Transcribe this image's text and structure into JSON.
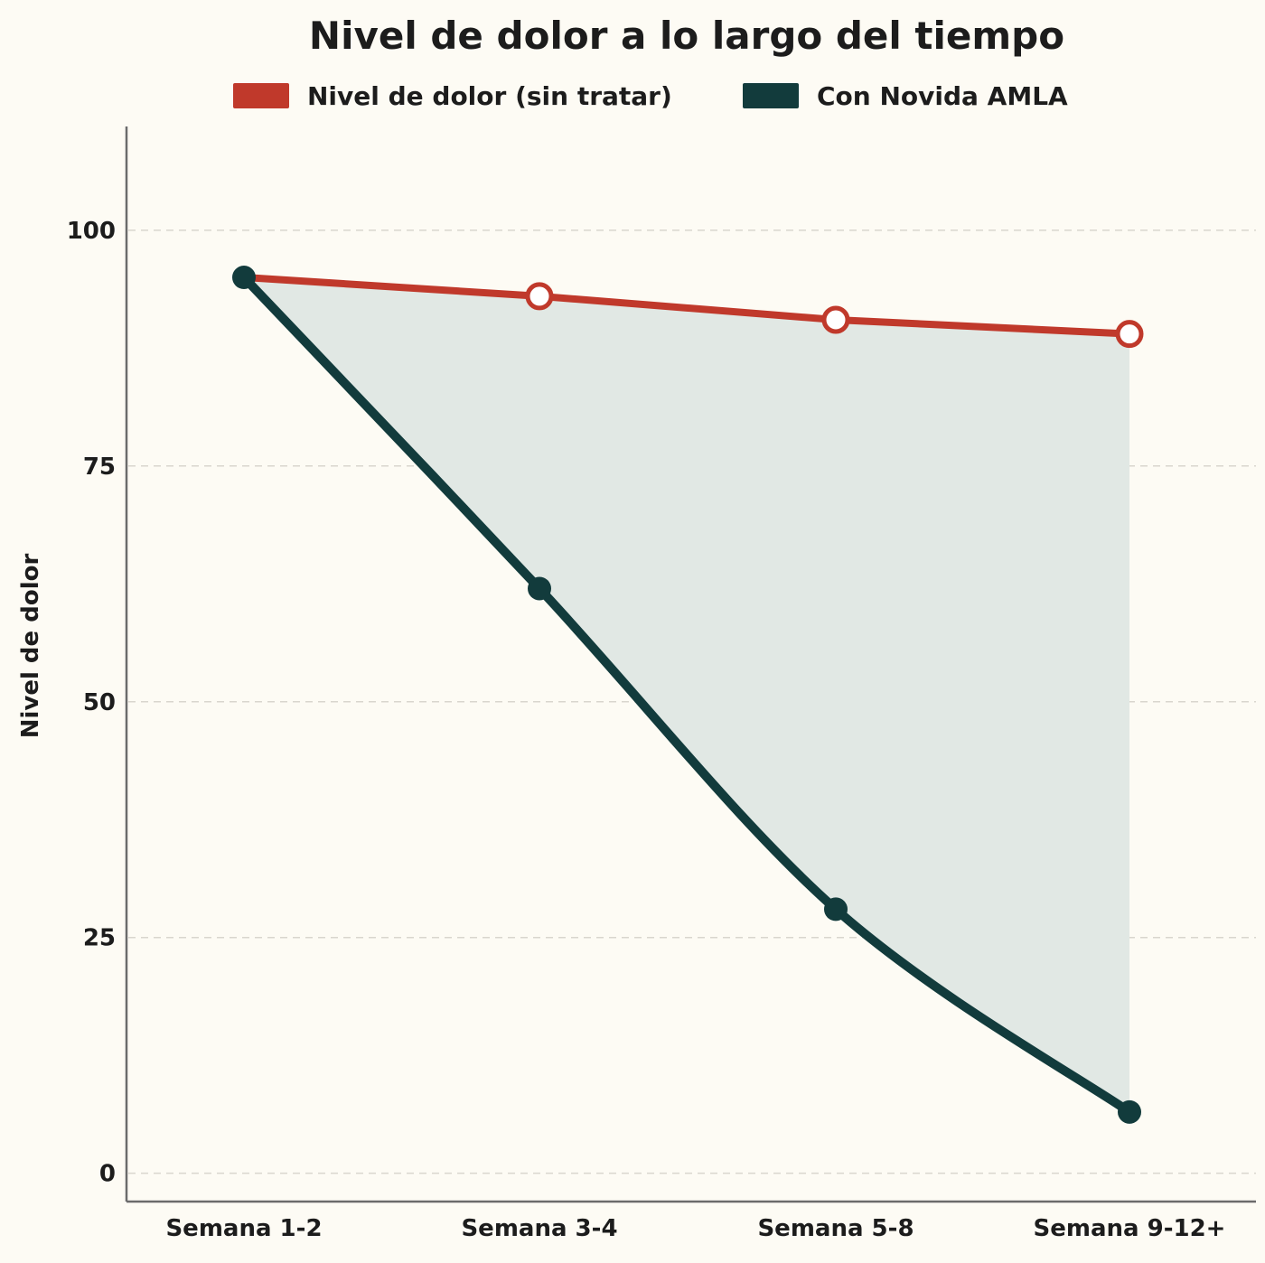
{
  "chart_data": {
    "type": "line",
    "title": "Nivel de dolor a lo largo del tiempo",
    "xlabel": "",
    "ylabel": "Nivel de dolor",
    "categories": [
      "Semana 1-2",
      "Semana 3-4",
      "Semana 5-8",
      "Semana 9-12+"
    ],
    "ylim": [
      -3,
      111
    ],
    "yticks": [
      "0",
      "25",
      "50",
      "75",
      "100"
    ],
    "grid": "horizontal dashed",
    "legend_position": "top",
    "series": [
      {
        "name": "Nivel de dolor (sin tratar)",
        "values": [
          95,
          93,
          90.5,
          89
        ],
        "color": "#c0392b",
        "marker": "hollow-circle"
      },
      {
        "name": "Con Novida AMLA",
        "values": [
          95,
          62,
          28,
          6.5
        ],
        "color": "#123b3c",
        "marker": "filled-circle",
        "line_style": "smooth"
      }
    ],
    "fill_between": {
      "color": "#e1e8e4",
      "series": [
        0,
        1
      ]
    }
  }
}
